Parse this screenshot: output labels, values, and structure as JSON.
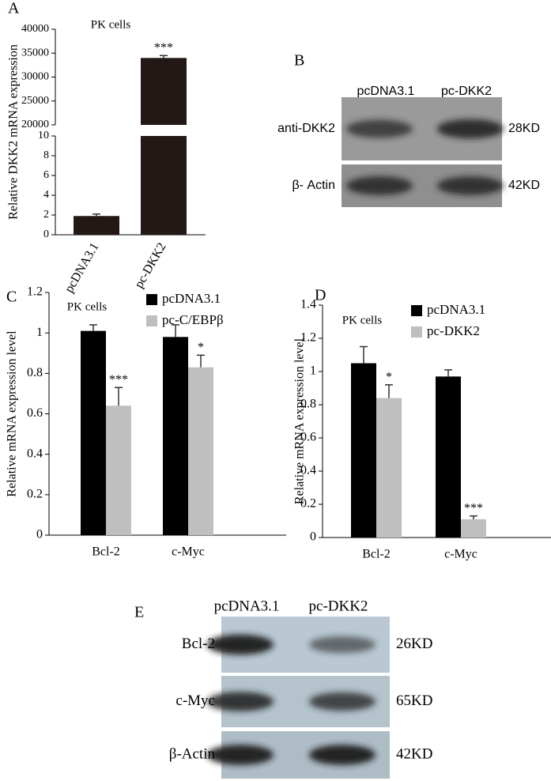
{
  "chart_data": [
    {
      "type": "bar",
      "panel": "A",
      "subtitle": "PK cells",
      "y_label": "Relative DKK2 mRNA expression",
      "categories": [
        "pcDNA3.1",
        "pc-DKK2"
      ],
      "values": [
        1.9,
        34000
      ],
      "errors": [
        0.2,
        500
      ],
      "color": "#231815",
      "significance": [
        null,
        "***"
      ],
      "axis_segments": [
        {
          "ylim": [
            0,
            10
          ],
          "yticks": [
            0,
            2,
            4,
            6,
            8,
            10
          ]
        },
        {
          "ylim": [
            20000,
            40000
          ],
          "yticks": [
            20000,
            25000,
            30000,
            35000,
            40000
          ]
        }
      ]
    },
    {
      "type": "bar",
      "panel": "C",
      "subtitle": "PK cells",
      "y_label": "Relative mRNA expression level",
      "categories": [
        "Bcl-2",
        "c-Myc"
      ],
      "series": [
        {
          "name": "pcDNA3.1",
          "color": "#000000",
          "values": [
            1.01,
            0.98
          ],
          "errors": [
            0.03,
            0.06
          ],
          "significance": [
            null,
            null
          ]
        },
        {
          "name": "pc-C/EBPβ",
          "color": "#bfbfbf",
          "values": [
            0.64,
            0.83
          ],
          "errors": [
            0.09,
            0.06
          ],
          "significance": [
            "***",
            "*"
          ]
        }
      ],
      "ylim": [
        0,
        1.2
      ],
      "yticks": [
        0,
        0.2,
        0.4,
        0.6,
        0.8,
        1,
        1.2
      ],
      "legend": "upper right"
    },
    {
      "type": "bar",
      "panel": "D",
      "subtitle": "PK cells",
      "y_label": "Relative mRNA expression level",
      "categories": [
        "Bcl-2",
        "c-Myc"
      ],
      "series": [
        {
          "name": "pcDNA3.1",
          "color": "#000000",
          "values": [
            1.05,
            0.97
          ],
          "errors": [
            0.1,
            0.04
          ],
          "significance": [
            null,
            null
          ]
        },
        {
          "name": "pc-DKK2",
          "color": "#bfbfbf",
          "values": [
            0.84,
            0.11
          ],
          "errors": [
            0.08,
            0.02
          ],
          "significance": [
            "*",
            "***"
          ]
        }
      ],
      "ylim": [
        0,
        1.4
      ],
      "yticks": [
        0,
        0.2,
        0.4,
        0.6,
        0.8,
        1,
        1.2,
        1.4
      ],
      "legend": "upper right"
    }
  ],
  "blots": [
    {
      "panel": "B",
      "lanes": [
        "pcDNA3.1",
        "pc-DKK2"
      ],
      "rows": [
        {
          "label": "anti-DKK2",
          "size": "28KD"
        },
        {
          "label": "β- Actin",
          "size": "42KD"
        }
      ]
    },
    {
      "panel": "E",
      "lanes": [
        "pcDNA3.1",
        "pc-DKK2"
      ],
      "rows": [
        {
          "label": "Bcl-2",
          "size": "26KD"
        },
        {
          "label": "c-Myc",
          "size": "65KD"
        },
        {
          "label": "β-Actin",
          "size": "42KD"
        }
      ]
    }
  ]
}
